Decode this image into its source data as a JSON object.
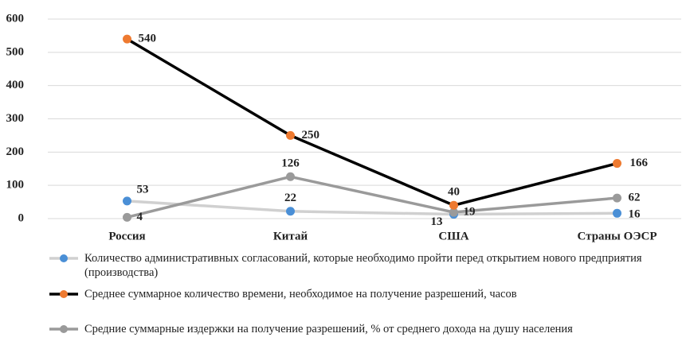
{
  "chart_data": {
    "type": "line",
    "categories": [
      "Россия",
      "Китай",
      "США",
      "Страны ОЭСР"
    ],
    "series": [
      {
        "name": "Количество административных согласований, которые необходимо пройти перед открытием нового предприятия (производства)",
        "color": "#d0d0d0",
        "marker_color": "#4a8fd6",
        "values": [
          53,
          22,
          13,
          16
        ]
      },
      {
        "name": "Среднее суммарное количество времени, необходимое на получение разрешений, часов",
        "color": "#000000",
        "marker_color": "#ee7a30",
        "values": [
          540,
          250,
          40,
          166
        ]
      },
      {
        "name": "Средние суммарные издержки на получение разрешений, % от среднего дохода на душу населения",
        "color": "#9a9a9a",
        "marker_color": "#9a9a9a",
        "values": [
          4,
          126,
          19,
          62
        ]
      }
    ],
    "ylim": [
      0,
      600
    ],
    "yticks": [
      0,
      100,
      200,
      300,
      400,
      500,
      600
    ],
    "grid": true,
    "legend": "bottom"
  }
}
